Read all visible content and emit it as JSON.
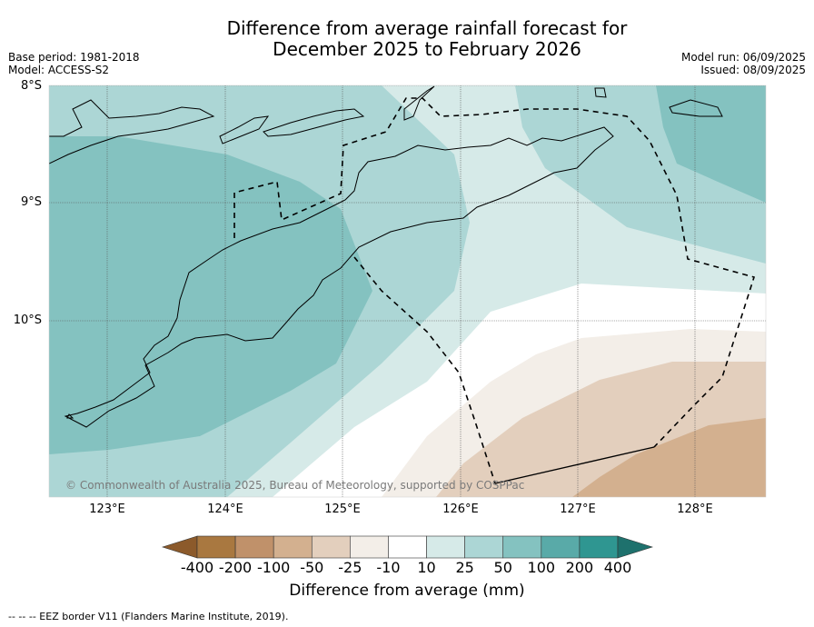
{
  "title": {
    "line1": "Difference from average rainfall forecast for",
    "line2": "December 2025 to February 2026"
  },
  "meta_left": {
    "base_period": "Base period: 1981-2018",
    "model": "Model: ACCESS-S2"
  },
  "meta_right": {
    "model_run": "Model run: 06/09/2025",
    "issued": "Issued: 08/09/2025"
  },
  "map": {
    "lat_labels": [
      "8°S",
      "9°S",
      "10°S"
    ],
    "lon_labels": [
      "123°E",
      "124°E",
      "125°E",
      "126°E",
      "127°E",
      "128°E"
    ],
    "copyright": "© Commonwealth of Australia 2025, Bureau of Meteorology, supported by COSPPac",
    "border_style": "dashed",
    "land_outline_color": "#000000"
  },
  "colorbar": {
    "title": "Difference from average (mm)",
    "tick_labels": [
      "-400",
      "-200",
      "-100",
      "-50",
      "-25",
      "-10",
      "10",
      "25",
      "50",
      "100",
      "200",
      "400"
    ],
    "colors": [
      "#8c5a2b",
      "#a97840",
      "#c0916a",
      "#d3b08f",
      "#e3cfbd",
      "#f3eee8",
      "#ffffff",
      "#d6eae8",
      "#acd6d5",
      "#84c2c0",
      "#59aaa8",
      "#2f9691",
      "#1e716d"
    ]
  },
  "footnote": "-- --  -- EEZ border V11 (Flanders Marine Institute, 2019)."
}
